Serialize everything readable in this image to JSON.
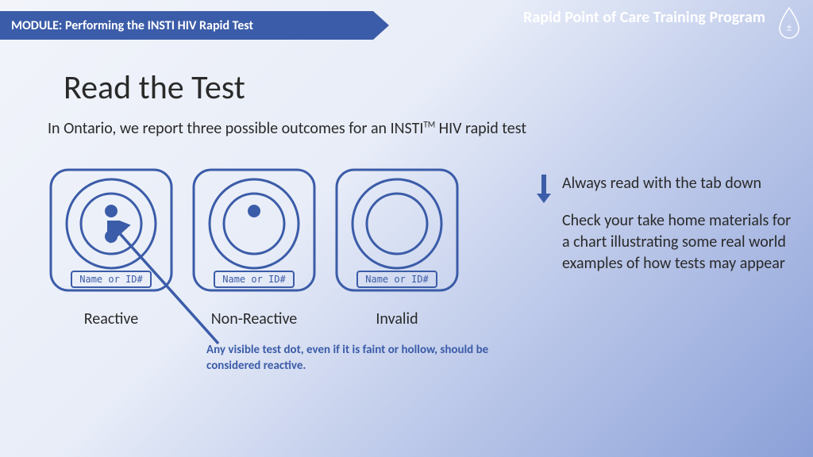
{
  "header": {
    "module_label": "MODULE: Performing the INSTI HIV Rapid Test",
    "program_title": "Rapid Point of Care Training Program",
    "drop_symbol": "±"
  },
  "main": {
    "title": "Read the Test",
    "intro_pre": "In Ontario, we report three possible outcomes for an INSTI",
    "intro_sup": "TM",
    "intro_post": " HIV rapid test"
  },
  "cards": [
    {
      "label": "Reactive",
      "id_text": "Name or ID#",
      "top_dot": true,
      "bottom_dot": true
    },
    {
      "label": "Non-Reactive",
      "id_text": "Name or ID#",
      "top_dot": true,
      "bottom_dot": false
    },
    {
      "label": "Invalid",
      "id_text": "Name or ID#",
      "top_dot": false,
      "bottom_dot": false
    }
  ],
  "note": "Any visible test dot, even if it is faint or hollow, should be considered reactive.",
  "right": {
    "line1": "Always read with the tab down",
    "line2": "Check your take home materials for a chart illustrating some real world examples of how tests may appear"
  },
  "style": {
    "accent_color": "#3b5ca8",
    "card_stroke": "#3b5ca8",
    "card_size": 160,
    "text_color": "#2a2a2a"
  }
}
